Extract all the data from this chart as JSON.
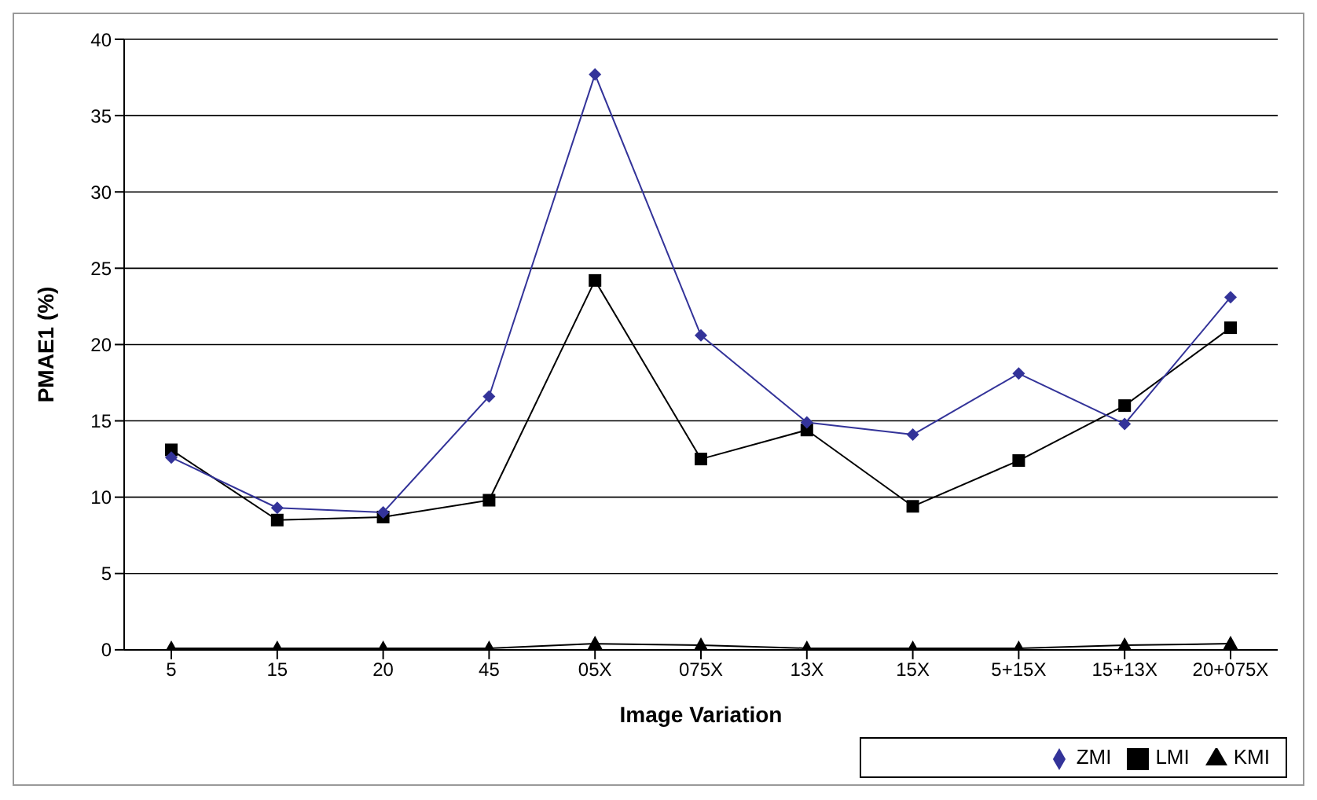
{
  "chart_data": {
    "type": "line",
    "xlabel": "Image Variation",
    "ylabel": "PMAE1 (%)",
    "categories": [
      "5",
      "15",
      "20",
      "45",
      "05X",
      "075X",
      "13X",
      "15X",
      "5+15X",
      "15+13X",
      "20+075X"
    ],
    "series": [
      {
        "name": "ZMI",
        "color": "#333399",
        "marker": "diamond",
        "values": [
          12.6,
          9.3,
          9.0,
          16.6,
          37.7,
          20.6,
          14.9,
          14.1,
          18.1,
          14.8,
          23.1
        ]
      },
      {
        "name": "LMI",
        "color": "#000000",
        "marker": "square",
        "values": [
          13.1,
          8.5,
          8.7,
          9.8,
          24.2,
          12.5,
          14.4,
          9.4,
          12.4,
          16.0,
          21.1
        ]
      },
      {
        "name": "KMI",
        "color": "#000000",
        "marker": "triangle",
        "values": [
          0.1,
          0.1,
          0.1,
          0.1,
          0.4,
          0.3,
          0.1,
          0.1,
          0.1,
          0.3,
          0.4
        ]
      }
    ],
    "ylim": [
      0,
      40
    ],
    "yticks": [
      0,
      5,
      10,
      15,
      20,
      25,
      30,
      35,
      40
    ],
    "grid": "y",
    "legend": "bottom right"
  }
}
